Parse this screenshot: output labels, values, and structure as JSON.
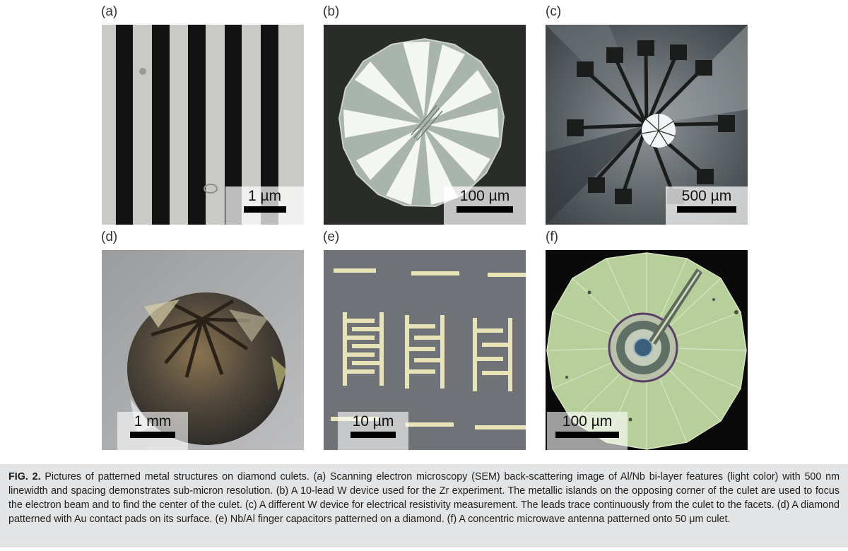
{
  "panels": [
    {
      "label": "(a)",
      "scalebar": "1 µm"
    },
    {
      "label": "(b)",
      "scalebar": "100 µm"
    },
    {
      "label": "(c)",
      "scalebar": "500 µm"
    },
    {
      "label": "(d)",
      "scalebar": "1 mm"
    },
    {
      "label": "(e)",
      "scalebar": "10 µm"
    },
    {
      "label": "(f)",
      "scalebar": "100 µm"
    }
  ],
  "caption": {
    "fig_label": "FIG. 2.",
    "text": "Pictures of patterned metal structures on diamond culets. (a) Scanning electron microscopy (SEM) back-scattering image of Al/Nb bi-layer features (light color) with 500 nm linewidth and spacing demonstrates sub-micron resolution. (b) A 10-lead W device used for the Zr experiment. The metallic islands on the opposing corner of the culet are used to focus the electron beam and to find the center of the culet. (c) A different W device for electrical resistivity measurement. The leads trace continuously from the culet to the facets. (d) A diamond patterned with Au contact pads on its surface. (e) Nb/Al finger capacitors patterned on a diamond. (f) A concentric microwave antenna patterned onto 50 μm culet."
  },
  "colors": {
    "caption_bg": "#e3e4e6",
    "sem_light": "#c9cac6",
    "sem_dark": "#121212",
    "antenna_green": "#b7cf9a"
  }
}
